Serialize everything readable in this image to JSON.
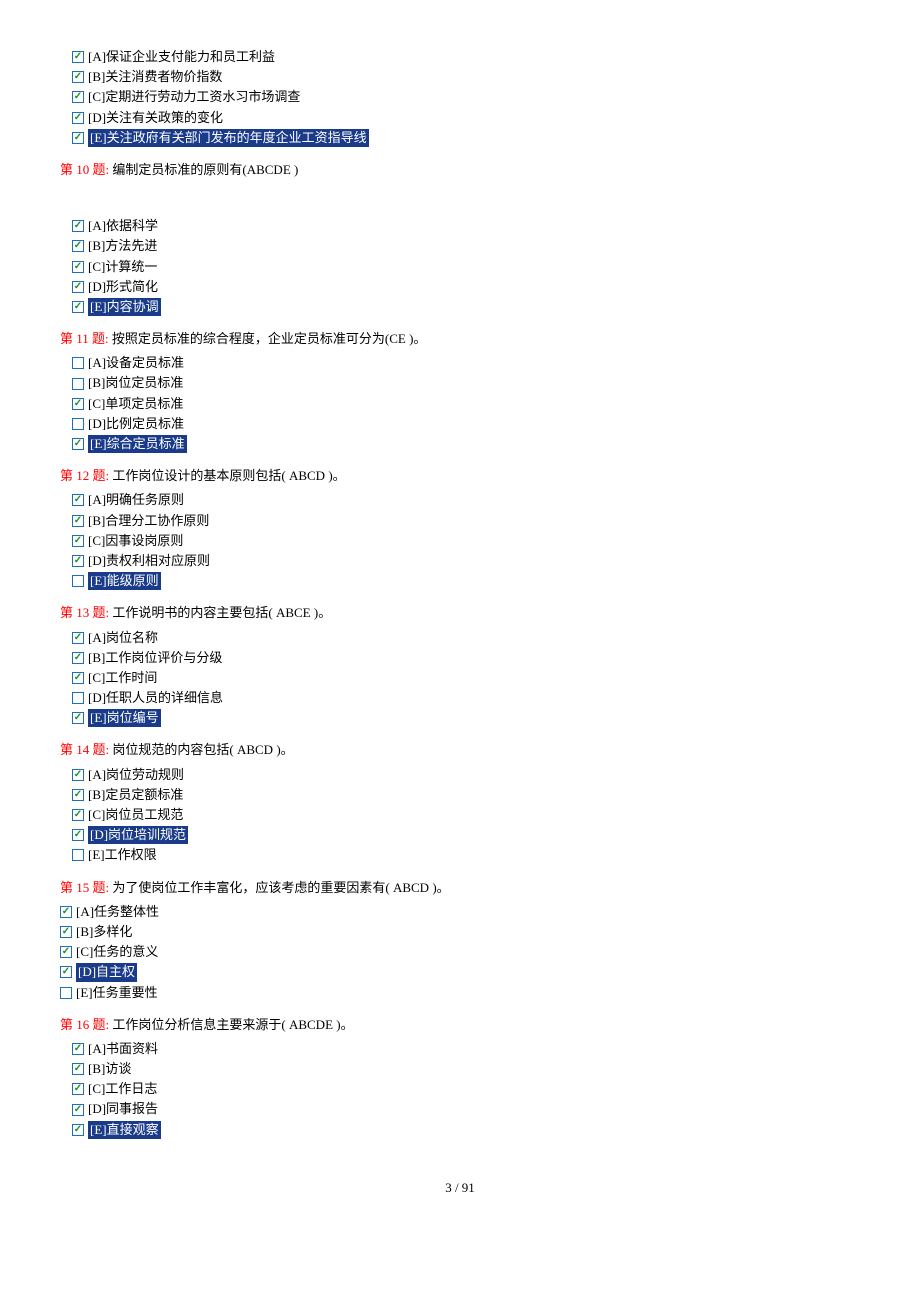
{
  "page_footer": "3  /  91",
  "highlight_bg": "#1a3a8a",
  "highlight_fg": "#ffffff",
  "qnum_color": "#ff0000",
  "check_color": "#1a8f2e",
  "box_border": "#1f6fb8",
  "questions": [
    {
      "num": "",
      "text": "",
      "options": [
        {
          "label": "[A]保证企业支付能力和员工利益",
          "checked": true,
          "highlighted": false
        },
        {
          "label": "[B]关注消费者物价指数",
          "checked": true,
          "highlighted": false
        },
        {
          "label": "[C]定期进行劳动力工资水习市场调查",
          "checked": true,
          "highlighted": false
        },
        {
          "label": "[D]关注有关政策的变化",
          "checked": true,
          "highlighted": false
        },
        {
          "label": "[E]关注政府有关部门发布的年度企业工资指导线",
          "checked": true,
          "highlighted": true
        }
      ]
    },
    {
      "num": "第 10 题:",
      "text": "   编制定员标准的原则有(ABCDE )",
      "spacer": true,
      "options": [
        {
          "label": "[A]依据科学",
          "checked": true,
          "highlighted": false
        },
        {
          "label": "[B]方法先进",
          "checked": true,
          "highlighted": false
        },
        {
          "label": "[C]计算统一",
          "checked": true,
          "highlighted": false
        },
        {
          "label": "[D]形式简化",
          "checked": true,
          "highlighted": false
        },
        {
          "label": "[E]内容协调",
          "checked": true,
          "highlighted": true
        }
      ]
    },
    {
      "num": "第 11 题:",
      "text": "   按照定员标准的综合程度，企业定员标准可分为(CE )。",
      "options": [
        {
          "label": "[A]设备定员标准",
          "checked": false,
          "highlighted": false
        },
        {
          "label": "[B]岗位定员标准",
          "checked": false,
          "highlighted": false
        },
        {
          "label": "[C]单项定员标准",
          "checked": true,
          "highlighted": false
        },
        {
          "label": "[D]比例定员标准",
          "checked": false,
          "highlighted": false
        },
        {
          "label": "[E]综合定员标准",
          "checked": true,
          "highlighted": true
        }
      ]
    },
    {
      "num": "第 12 题:",
      "text": "   工作岗位设计的基本原则包括( ABCD )。",
      "options": [
        {
          "label": "[A]明确任务原则",
          "checked": true,
          "highlighted": false
        },
        {
          "label": "[B]合理分工协作原则",
          "checked": true,
          "highlighted": false
        },
        {
          "label": "[C]因事设岗原则",
          "checked": true,
          "highlighted": false
        },
        {
          "label": "[D]责权利相对应原则",
          "checked": true,
          "highlighted": false
        },
        {
          "label": "[E]能级原则",
          "checked": false,
          "highlighted": true
        }
      ]
    },
    {
      "num": "第 13 题:",
      "text": "   工作说明书的内容主要包括( ABCE )。",
      "options": [
        {
          "label": "[A]岗位名称",
          "checked": true,
          "highlighted": false
        },
        {
          "label": "[B]工作岗位评价与分级",
          "checked": true,
          "highlighted": false
        },
        {
          "label": "[C]工作时间",
          "checked": true,
          "highlighted": false
        },
        {
          "label": "[D]任职人员的详细信息",
          "checked": false,
          "highlighted": false
        },
        {
          "label": "[E]岗位编号",
          "checked": true,
          "highlighted": true
        }
      ]
    },
    {
      "num": "第 14 题:",
      "text": "   岗位规范的内容包括( ABCD )。",
      "options": [
        {
          "label": "[A]岗位劳动规则",
          "checked": true,
          "highlighted": false
        },
        {
          "label": "[B]定员定额标准",
          "checked": true,
          "highlighted": false
        },
        {
          "label": "[C]岗位员工规范",
          "checked": true,
          "highlighted": false
        },
        {
          "label": "[D]岗位培训规范",
          "checked": true,
          "highlighted": true
        },
        {
          "label": "[E]工作权限",
          "checked": false,
          "highlighted": false
        }
      ]
    },
    {
      "num": "第 15 题:",
      "text": "   为了使岗位工作丰富化，应该考虑的重要因素有( ABCD )。",
      "tight": true,
      "options": [
        {
          "label": "[A]任务整体性",
          "checked": true,
          "highlighted": false
        },
        {
          "label": "[B]多样化",
          "checked": true,
          "highlighted": false
        },
        {
          "label": "[C]任务的意义",
          "checked": true,
          "highlighted": false
        },
        {
          "label": "[D]自主权",
          "checked": true,
          "highlighted": true
        },
        {
          "label": "[E]任务重要性",
          "checked": false,
          "highlighted": false
        }
      ]
    },
    {
      "num": "第 16 题:",
      "text": "   工作岗位分析信息主要来源于( ABCDE )。",
      "options": [
        {
          "label": "[A]书面资料",
          "checked": true,
          "highlighted": false
        },
        {
          "label": "[B]访谈",
          "checked": true,
          "highlighted": false
        },
        {
          "label": "[C]工作日志",
          "checked": true,
          "highlighted": false
        },
        {
          "label": "[D]同事报告",
          "checked": true,
          "highlighted": false
        },
        {
          "label": "[E]直接观察",
          "checked": true,
          "highlighted": true
        }
      ]
    }
  ]
}
